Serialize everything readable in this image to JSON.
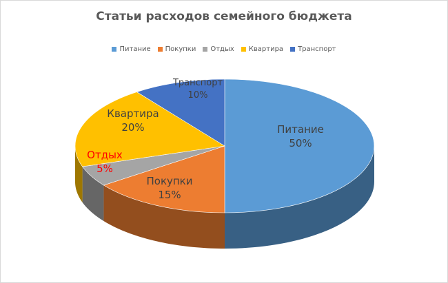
{
  "chart_data": {
    "type": "pie",
    "title": "Статьи расходов семейного бюджета",
    "legend_position": "top",
    "categories": [
      "Питание",
      "Покупки",
      "Отдых",
      "Квартира",
      "Транспорт"
    ],
    "values": [
      50,
      15,
      5,
      20,
      10
    ],
    "value_labels": [
      "50%",
      "15%",
      "5%",
      "20%",
      "10%"
    ],
    "colors": [
      "#5B9BD5",
      "#ED7D31",
      "#A5A5A5",
      "#FFC000",
      "#4472C4"
    ],
    "label_colors": [
      "#404040",
      "#404040",
      "#FF0000",
      "#404040",
      "#404040"
    ]
  }
}
